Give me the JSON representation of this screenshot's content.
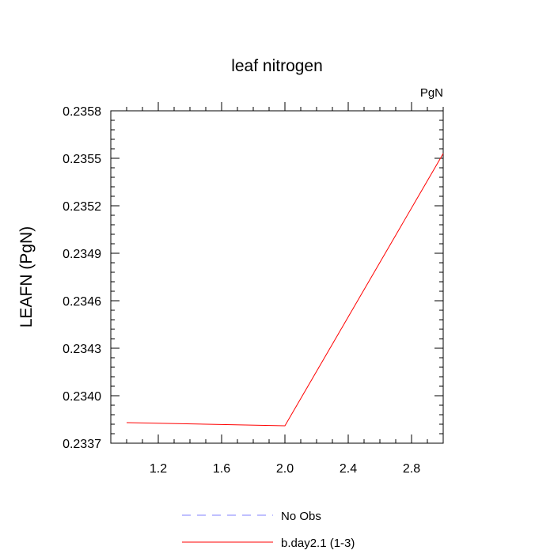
{
  "chart_data": {
    "type": "line",
    "title": "leaf nitrogen",
    "units_label": "PgN",
    "ylabel": "LEAFN  (PgN)",
    "xlabel": "",
    "xlim": [
      0.9,
      3.0
    ],
    "ylim": [
      0.2337,
      0.2358
    ],
    "x_ticks": [
      1.2,
      1.6,
      2.0,
      2.4,
      2.8
    ],
    "x_tick_labels": [
      "1.2",
      "1.6",
      "2.0",
      "2.4",
      "2.8"
    ],
    "y_ticks": [
      0.2337,
      0.234,
      0.2343,
      0.2346,
      0.2349,
      0.2352,
      0.2355,
      0.2358
    ],
    "y_tick_labels": [
      "0.2337",
      "0.2340",
      "0.2343",
      "0.2346",
      "0.2349",
      "0.2352",
      "0.2355",
      "0.2358"
    ],
    "grid": false,
    "legend_position": "bottom",
    "series": [
      {
        "name": "b.day2.1 (1-3)",
        "x": [
          1,
          2,
          3
        ],
        "values": [
          0.23383,
          0.23381,
          0.23553
        ],
        "color": "#ff0000",
        "style": "solid"
      }
    ],
    "legend": [
      {
        "label": "No Obs",
        "color": "#8080ff",
        "style": "dashed"
      },
      {
        "label": "b.day2.1 (1-3)",
        "color": "#ff0000",
        "style": "solid"
      }
    ]
  }
}
